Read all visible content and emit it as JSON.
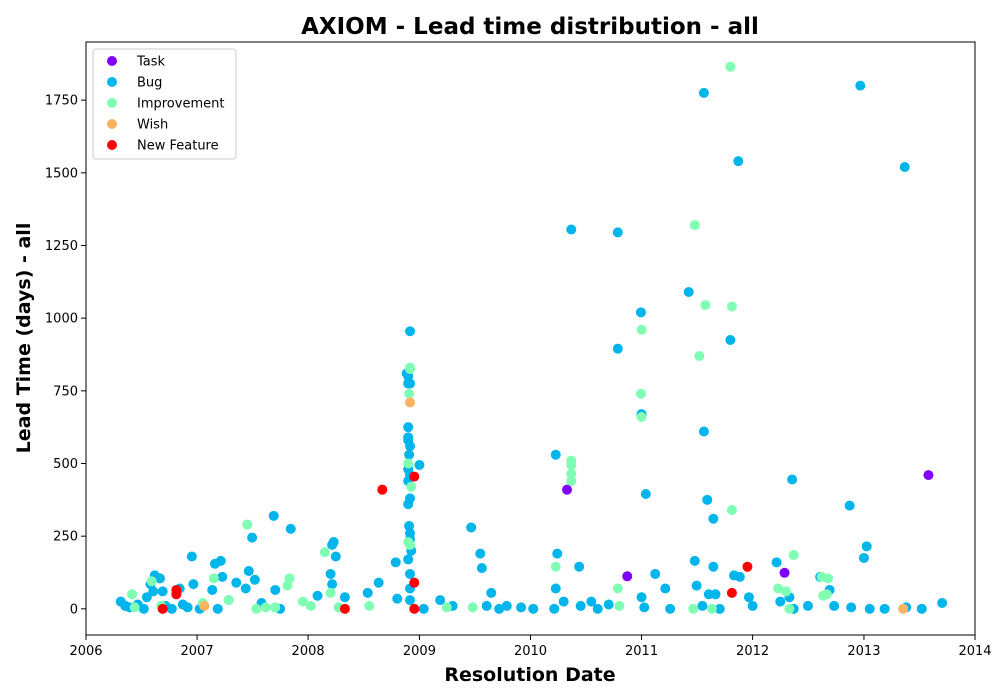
{
  "chart_data": {
    "type": "scatter",
    "title": "AXIOM - Lead time distribution - all",
    "xlabel": "Resolution Date",
    "ylabel": "Lead Time (days) - all",
    "x_axis_type": "date",
    "xlim": [
      "2006-01-01",
      "2014-01-01"
    ],
    "ylim": [
      -90,
      1950
    ],
    "x_ticks": [
      "2006",
      "2007",
      "2008",
      "2009",
      "2010",
      "2011",
      "2012",
      "2013",
      "2014"
    ],
    "y_ticks": [
      0,
      250,
      500,
      750,
      1000,
      1250,
      1500,
      1750
    ],
    "grid": false,
    "legend_position": "top-left",
    "series": [
      {
        "name": "Task",
        "color": "#8000ff",
        "points": [
          {
            "x": "2010-05-01",
            "y": 410
          },
          {
            "x": "2010-11-15",
            "y": 112
          },
          {
            "x": "2012-04-15",
            "y": 124
          },
          {
            "x": "2013-08-01",
            "y": 460
          }
        ]
      },
      {
        "name": "Bug",
        "color": "#00b5eb",
        "points": [
          {
            "x": "2006-04-25",
            "y": 25
          },
          {
            "x": "2006-05-10",
            "y": 10
          },
          {
            "x": "2006-05-25",
            "y": 5
          },
          {
            "x": "2006-06-20",
            "y": 15
          },
          {
            "x": "2006-07-10",
            "y": 0
          },
          {
            "x": "2006-07-20",
            "y": 40
          },
          {
            "x": "2006-08-01",
            "y": 85
          },
          {
            "x": "2006-08-10",
            "y": 60
          },
          {
            "x": "2006-08-15",
            "y": 115
          },
          {
            "x": "2006-09-01",
            "y": 105
          },
          {
            "x": "2006-09-10",
            "y": 60
          },
          {
            "x": "2006-09-20",
            "y": 10
          },
          {
            "x": "2006-10-10",
            "y": 0
          },
          {
            "x": "2006-10-25",
            "y": 50
          },
          {
            "x": "2006-11-05",
            "y": 70
          },
          {
            "x": "2006-11-15",
            "y": 15
          },
          {
            "x": "2006-12-01",
            "y": 5
          },
          {
            "x": "2006-12-15",
            "y": 180
          },
          {
            "x": "2006-12-20",
            "y": 85
          },
          {
            "x": "2007-01-10",
            "y": 0
          },
          {
            "x": "2007-02-20",
            "y": 65
          },
          {
            "x": "2007-03-01",
            "y": 155
          },
          {
            "x": "2007-03-10",
            "y": 0
          },
          {
            "x": "2007-03-20",
            "y": 165
          },
          {
            "x": "2007-03-25",
            "y": 110
          },
          {
            "x": "2007-04-15",
            "y": 30
          },
          {
            "x": "2007-05-10",
            "y": 90
          },
          {
            "x": "2007-06-10",
            "y": 70
          },
          {
            "x": "2007-06-20",
            "y": 130
          },
          {
            "x": "2007-07-01",
            "y": 245
          },
          {
            "x": "2007-07-10",
            "y": 100
          },
          {
            "x": "2007-08-01",
            "y": 20
          },
          {
            "x": "2007-09-10",
            "y": 320
          },
          {
            "x": "2007-09-15",
            "y": 65
          },
          {
            "x": "2007-10-01",
            "y": 0
          },
          {
            "x": "2007-11-05",
            "y": 275
          },
          {
            "x": "2008-02-01",
            "y": 45
          },
          {
            "x": "2008-03-15",
            "y": 120
          },
          {
            "x": "2008-03-20",
            "y": 85
          },
          {
            "x": "2008-03-20",
            "y": 220
          },
          {
            "x": "2008-03-25",
            "y": 230
          },
          {
            "x": "2008-04-01",
            "y": 180
          },
          {
            "x": "2008-05-01",
            "y": 40
          },
          {
            "x": "2008-07-15",
            "y": 55
          },
          {
            "x": "2008-08-20",
            "y": 90
          },
          {
            "x": "2008-10-15",
            "y": 160
          },
          {
            "x": "2008-10-20",
            "y": 35
          },
          {
            "x": "2008-11-20",
            "y": 810
          },
          {
            "x": "2008-11-25",
            "y": 800
          },
          {
            "x": "2008-11-25",
            "y": 775
          },
          {
            "x": "2008-12-01",
            "y": 775
          },
          {
            "x": "2008-12-01",
            "y": 955
          },
          {
            "x": "2008-11-25",
            "y": 625
          },
          {
            "x": "2008-11-25",
            "y": 590
          },
          {
            "x": "2008-11-25",
            "y": 580
          },
          {
            "x": "2008-12-01",
            "y": 560
          },
          {
            "x": "2008-11-28",
            "y": 530
          },
          {
            "x": "2008-11-25",
            "y": 480
          },
          {
            "x": "2008-12-01",
            "y": 460
          },
          {
            "x": "2008-11-25",
            "y": 440
          },
          {
            "x": "2008-12-01",
            "y": 380
          },
          {
            "x": "2008-11-25",
            "y": 360
          },
          {
            "x": "2008-11-28",
            "y": 285
          },
          {
            "x": "2008-12-01",
            "y": 260
          },
          {
            "x": "2008-12-01",
            "y": 240
          },
          {
            "x": "2008-12-05",
            "y": 200
          },
          {
            "x": "2008-11-25",
            "y": 170
          },
          {
            "x": "2008-12-01",
            "y": 120
          },
          {
            "x": "2008-12-01",
            "y": 70
          },
          {
            "x": "2008-12-01",
            "y": 30
          },
          {
            "x": "2009-01-01",
            "y": 495
          },
          {
            "x": "2009-01-15",
            "y": 0
          },
          {
            "x": "2009-03-10",
            "y": 30
          },
          {
            "x": "2009-04-20",
            "y": 10
          },
          {
            "x": "2009-06-20",
            "y": 280
          },
          {
            "x": "2009-07-20",
            "y": 190
          },
          {
            "x": "2009-07-25",
            "y": 140
          },
          {
            "x": "2009-08-10",
            "y": 10
          },
          {
            "x": "2009-08-25",
            "y": 55
          },
          {
            "x": "2009-09-20",
            "y": 0
          },
          {
            "x": "2009-10-15",
            "y": 10
          },
          {
            "x": "2009-12-01",
            "y": 5
          },
          {
            "x": "2010-01-10",
            "y": 0
          },
          {
            "x": "2010-03-25",
            "y": 530
          },
          {
            "x": "2010-03-30",
            "y": 190
          },
          {
            "x": "2010-03-25",
            "y": 70
          },
          {
            "x": "2010-03-20",
            "y": 0
          },
          {
            "x": "2010-04-20",
            "y": 25
          },
          {
            "x": "2010-05-15",
            "y": 1305
          },
          {
            "x": "2010-06-10",
            "y": 145
          },
          {
            "x": "2010-06-15",
            "y": 10
          },
          {
            "x": "2010-07-20",
            "y": 25
          },
          {
            "x": "2010-08-10",
            "y": 0
          },
          {
            "x": "2010-09-15",
            "y": 15
          },
          {
            "x": "2010-10-15",
            "y": 1295
          },
          {
            "x": "2010-10-15",
            "y": 895
          },
          {
            "x": "2010-12-30",
            "y": 1020
          },
          {
            "x": "2011-01-01",
            "y": 670
          },
          {
            "x": "2011-01-01",
            "y": 665
          },
          {
            "x": "2011-01-15",
            "y": 395
          },
          {
            "x": "2011-01-01",
            "y": 40
          },
          {
            "x": "2011-01-10",
            "y": 5
          },
          {
            "x": "2011-02-15",
            "y": 120
          },
          {
            "x": "2011-03-20",
            "y": 70
          },
          {
            "x": "2011-04-05",
            "y": 0
          },
          {
            "x": "2011-06-05",
            "y": 1090
          },
          {
            "x": "2011-06-25",
            "y": 165
          },
          {
            "x": "2011-07-01",
            "y": 80
          },
          {
            "x": "2011-07-20",
            "y": 10
          },
          {
            "x": "2011-07-25",
            "y": 1775
          },
          {
            "x": "2011-07-25",
            "y": 610
          },
          {
            "x": "2011-08-05",
            "y": 375
          },
          {
            "x": "2011-08-10",
            "y": 50
          },
          {
            "x": "2011-08-25",
            "y": 310
          },
          {
            "x": "2011-08-25",
            "y": 145
          },
          {
            "x": "2011-09-01",
            "y": 50
          },
          {
            "x": "2011-09-15",
            "y": 0
          },
          {
            "x": "2011-10-20",
            "y": 925
          },
          {
            "x": "2011-11-01",
            "y": 115
          },
          {
            "x": "2011-11-15",
            "y": 1540
          },
          {
            "x": "2011-11-20",
            "y": 110
          },
          {
            "x": "2011-12-20",
            "y": 40
          },
          {
            "x": "2012-01-01",
            "y": 10
          },
          {
            "x": "2012-03-20",
            "y": 160
          },
          {
            "x": "2012-04-01",
            "y": 25
          },
          {
            "x": "2012-05-01",
            "y": 40
          },
          {
            "x": "2012-05-10",
            "y": 445
          },
          {
            "x": "2012-05-15",
            "y": 0
          },
          {
            "x": "2012-07-01",
            "y": 10
          },
          {
            "x": "2012-08-10",
            "y": 110
          },
          {
            "x": "2012-09-10",
            "y": 65
          },
          {
            "x": "2012-09-25",
            "y": 10
          },
          {
            "x": "2012-11-15",
            "y": 355
          },
          {
            "x": "2012-11-20",
            "y": 5
          },
          {
            "x": "2012-12-20",
            "y": 1800
          },
          {
            "x": "2013-01-01",
            "y": 175
          },
          {
            "x": "2013-01-10",
            "y": 215
          },
          {
            "x": "2013-01-20",
            "y": 0
          },
          {
            "x": "2013-03-10",
            "y": 0
          },
          {
            "x": "2013-05-15",
            "y": 1520
          },
          {
            "x": "2013-05-20",
            "y": 5
          },
          {
            "x": "2013-07-10",
            "y": 0
          },
          {
            "x": "2013-09-15",
            "y": 20
          }
        ]
      },
      {
        "name": "Improvement",
        "color": "#80ffb4",
        "points": [
          {
            "x": "2006-06-01",
            "y": 50
          },
          {
            "x": "2006-06-10",
            "y": 5
          },
          {
            "x": "2006-08-05",
            "y": 95
          },
          {
            "x": "2006-09-05",
            "y": 10
          },
          {
            "x": "2007-01-20",
            "y": 20
          },
          {
            "x": "2007-02-25",
            "y": 105
          },
          {
            "x": "2007-04-15",
            "y": 30
          },
          {
            "x": "2007-06-15",
            "y": 290
          },
          {
            "x": "2007-07-15",
            "y": 0
          },
          {
            "x": "2007-08-15",
            "y": 5
          },
          {
            "x": "2007-09-15",
            "y": 5
          },
          {
            "x": "2007-10-25",
            "y": 80
          },
          {
            "x": "2007-11-01",
            "y": 105
          },
          {
            "x": "2007-12-15",
            "y": 25
          },
          {
            "x": "2008-01-10",
            "y": 10
          },
          {
            "x": "2008-02-25",
            "y": 195
          },
          {
            "x": "2008-03-15",
            "y": 55
          },
          {
            "x": "2008-04-10",
            "y": 5
          },
          {
            "x": "2008-07-20",
            "y": 10
          },
          {
            "x": "2008-11-25",
            "y": 500
          },
          {
            "x": "2008-11-28",
            "y": 740
          },
          {
            "x": "2008-12-01",
            "y": 830
          },
          {
            "x": "2008-12-01",
            "y": 825
          },
          {
            "x": "2008-11-25",
            "y": 230
          },
          {
            "x": "2008-12-01",
            "y": 220
          },
          {
            "x": "2008-12-05",
            "y": 420
          },
          {
            "x": "2009-04-01",
            "y": 5
          },
          {
            "x": "2009-06-25",
            "y": 5
          },
          {
            "x": "2010-03-25",
            "y": 145
          },
          {
            "x": "2010-05-15",
            "y": 510
          },
          {
            "x": "2010-05-15",
            "y": 495
          },
          {
            "x": "2010-05-15",
            "y": 465
          },
          {
            "x": "2010-05-15",
            "y": 440
          },
          {
            "x": "2010-10-15",
            "y": 70
          },
          {
            "x": "2010-10-20",
            "y": 10
          },
          {
            "x": "2010-12-30",
            "y": 740
          },
          {
            "x": "2011-01-01",
            "y": 960
          },
          {
            "x": "2011-01-01",
            "y": 660
          },
          {
            "x": "2011-06-20",
            "y": 0
          },
          {
            "x": "2011-06-25",
            "y": 1320
          },
          {
            "x": "2011-07-10",
            "y": 870
          },
          {
            "x": "2011-07-30",
            "y": 1045
          },
          {
            "x": "2011-08-20",
            "y": 0
          },
          {
            "x": "2011-10-25",
            "y": 1040
          },
          {
            "x": "2011-10-25",
            "y": 340
          },
          {
            "x": "2011-10-20",
            "y": 1865
          },
          {
            "x": "2012-03-25",
            "y": 70
          },
          {
            "x": "2012-04-20",
            "y": 60
          },
          {
            "x": "2012-05-15",
            "y": 185
          },
          {
            "x": "2012-08-15",
            "y": 110
          },
          {
            "x": "2012-08-20",
            "y": 45
          },
          {
            "x": "2012-09-05",
            "y": 105
          },
          {
            "x": "2012-09-01",
            "y": 50
          },
          {
            "x": "2012-05-01",
            "y": 0
          }
        ]
      },
      {
        "name": "Wish",
        "color": "#ffb360",
        "points": [
          {
            "x": "2007-01-25",
            "y": 10
          },
          {
            "x": "2008-12-01",
            "y": 710
          },
          {
            "x": "2013-05-10",
            "y": 0
          }
        ]
      },
      {
        "name": "New Feature",
        "color": "#ff0000",
        "points": [
          {
            "x": "2006-09-10",
            "y": 0
          },
          {
            "x": "2006-10-25",
            "y": 65
          },
          {
            "x": "2006-10-25",
            "y": 50
          },
          {
            "x": "2008-05-01",
            "y": 0
          },
          {
            "x": "2008-09-01",
            "y": 410
          },
          {
            "x": "2008-12-15",
            "y": 455
          },
          {
            "x": "2008-12-15",
            "y": 90
          },
          {
            "x": "2008-12-15",
            "y": 0
          },
          {
            "x": "2011-10-25",
            "y": 55
          },
          {
            "x": "2011-12-15",
            "y": 145
          }
        ]
      }
    ]
  }
}
